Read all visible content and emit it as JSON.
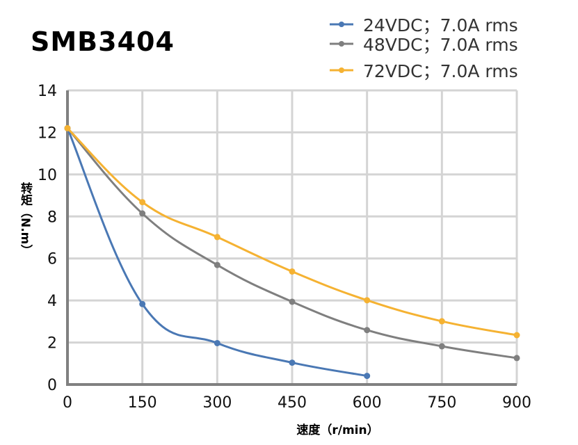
{
  "chart_data": {
    "type": "line",
    "title": "SMB3404",
    "xlabel": "速度（r/min）",
    "ylabel": "转矩（N.m）",
    "xlim": [
      0,
      900
    ],
    "ylim": [
      0,
      14
    ],
    "x_ticks": [
      "0",
      "150",
      "300",
      "450",
      "600",
      "750",
      "900"
    ],
    "y_ticks": [
      "0",
      "2",
      "4",
      "6",
      "8",
      "10",
      "12",
      "14"
    ],
    "grid": true,
    "legend_position": "top-right",
    "series": [
      {
        "name": "24VDC；7.0A rms",
        "color": "#4a78b4",
        "x": [
          0,
          150,
          300,
          450,
          600
        ],
        "y": [
          12.2,
          3.83,
          1.97,
          1.04,
          0.41
        ]
      },
      {
        "name": "48VDC；7.0A rms",
        "color": "#7f7f7f",
        "x": [
          0,
          150,
          300,
          450,
          600,
          750,
          900
        ],
        "y": [
          12.2,
          8.14,
          5.69,
          3.94,
          2.59,
          1.82,
          1.26
        ]
      },
      {
        "name": "72VDC；7.0A rms",
        "color": "#f5b232",
        "x": [
          0,
          150,
          300,
          450,
          600,
          750,
          900
        ],
        "y": [
          12.2,
          8.68,
          7.02,
          5.38,
          4.01,
          3.01,
          2.35
        ]
      }
    ]
  }
}
